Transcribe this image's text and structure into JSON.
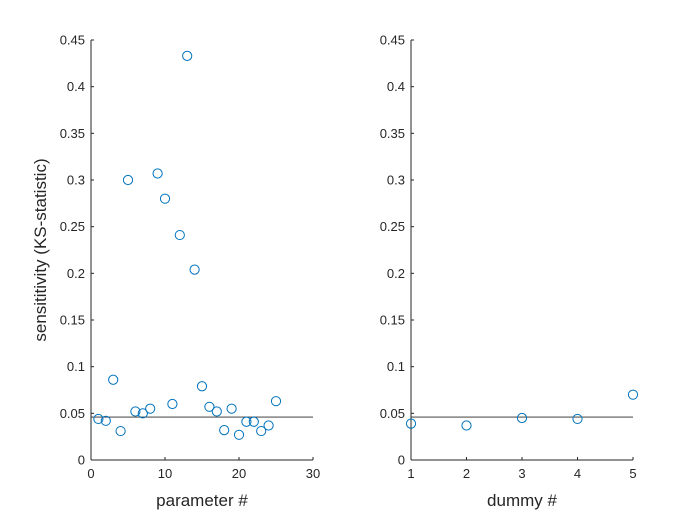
{
  "figure": {
    "marker_color": "#0072BD",
    "line_color": "#262626",
    "axis_color": "#262626"
  },
  "chart_data": [
    {
      "type": "scatter",
      "xlabel": "parameter #",
      "ylabel": "sensititivity (KS-statistic)",
      "xlim": [
        0,
        30
      ],
      "ylim": [
        0,
        0.45
      ],
      "xticks": [
        0,
        10,
        20,
        30
      ],
      "yticks": [
        0,
        0.05,
        0.1,
        0.15,
        0.2,
        0.25,
        0.3,
        0.35,
        0.4,
        0.45
      ],
      "threshold": 0.046,
      "x": [
        1,
        2,
        3,
        4,
        5,
        6,
        7,
        8,
        9,
        10,
        11,
        12,
        13,
        14,
        15,
        16,
        17,
        18,
        19,
        20,
        21,
        22,
        23,
        24,
        25
      ],
      "y": [
        0.044,
        0.042,
        0.086,
        0.031,
        0.3,
        0.052,
        0.05,
        0.055,
        0.307,
        0.28,
        0.06,
        0.241,
        0.433,
        0.204,
        0.079,
        0.057,
        0.052,
        0.032,
        0.055,
        0.027,
        0.041,
        0.041,
        0.031,
        0.037,
        0.063
      ]
    },
    {
      "type": "scatter",
      "xlabel": "dummy #",
      "ylabel": "",
      "xlim": [
        1,
        5
      ],
      "ylim": [
        0,
        0.45
      ],
      "xticks": [
        1,
        2,
        3,
        4,
        5
      ],
      "yticks": [
        0,
        0.05,
        0.1,
        0.15,
        0.2,
        0.25,
        0.3,
        0.35,
        0.4,
        0.45
      ],
      "threshold": 0.046,
      "x": [
        1,
        2,
        3,
        4,
        5
      ],
      "y": [
        0.039,
        0.037,
        0.045,
        0.044,
        0.07
      ]
    }
  ]
}
